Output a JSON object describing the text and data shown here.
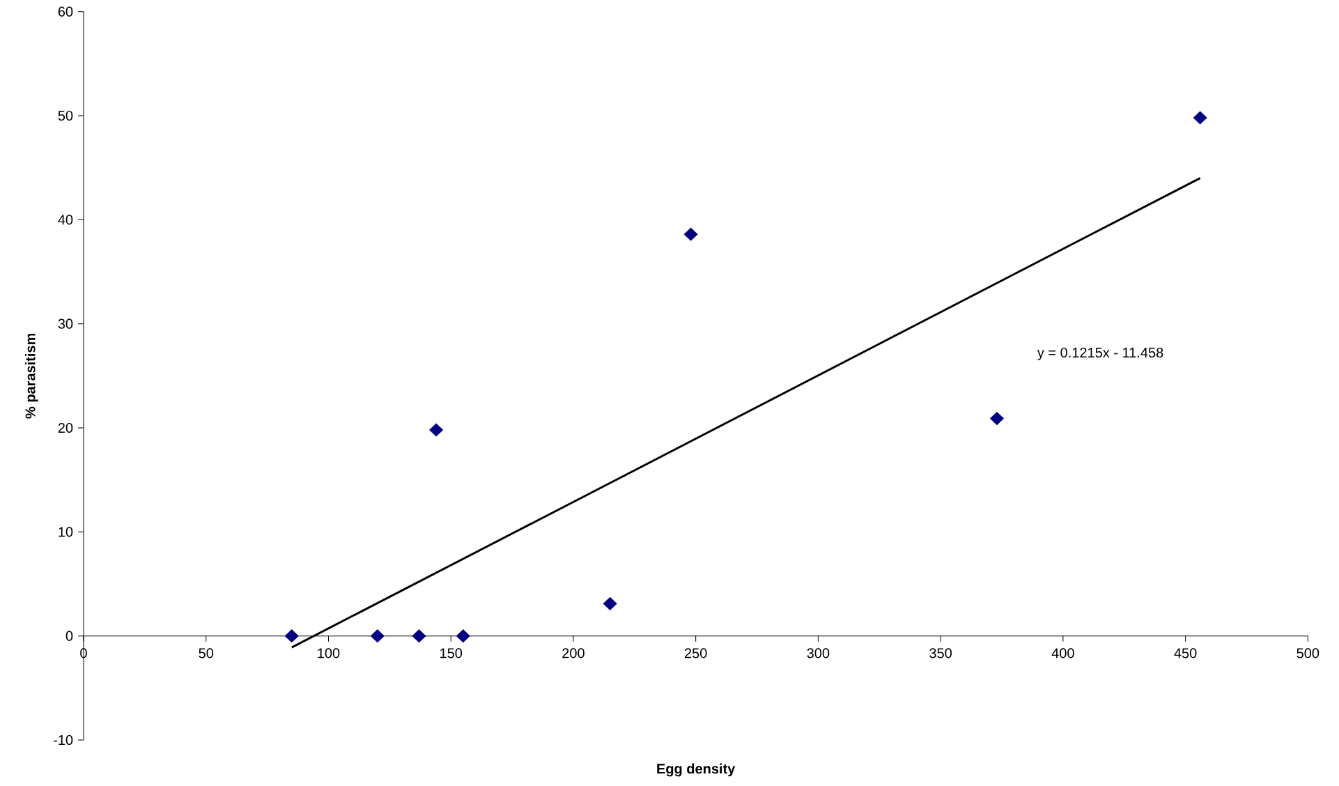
{
  "chart_data": {
    "type": "scatter",
    "xlabel": "Egg density",
    "ylabel": "% parasitism",
    "xlim": [
      0,
      500
    ],
    "ylim": [
      -10,
      60
    ],
    "xticks": [
      0,
      50,
      100,
      150,
      200,
      250,
      300,
      350,
      400,
      450,
      500
    ],
    "yticks": [
      -10,
      0,
      10,
      20,
      30,
      40,
      50,
      60
    ],
    "grid": false,
    "series": [
      {
        "marker": "diamond",
        "color": "#000080",
        "x": [
          85,
          120,
          137,
          144,
          155,
          215,
          248,
          373,
          456
        ],
        "values": [
          0,
          0,
          0,
          19.8,
          0,
          3.1,
          38.6,
          20.9,
          49.8
        ]
      },
      {
        "type": "line",
        "marker": "none",
        "color": "#000000",
        "x": [
          85,
          456
        ],
        "values": [
          -1.1,
          44.0
        ]
      }
    ],
    "annotations": [
      "y = 0.1215x - 11.458"
    ]
  }
}
